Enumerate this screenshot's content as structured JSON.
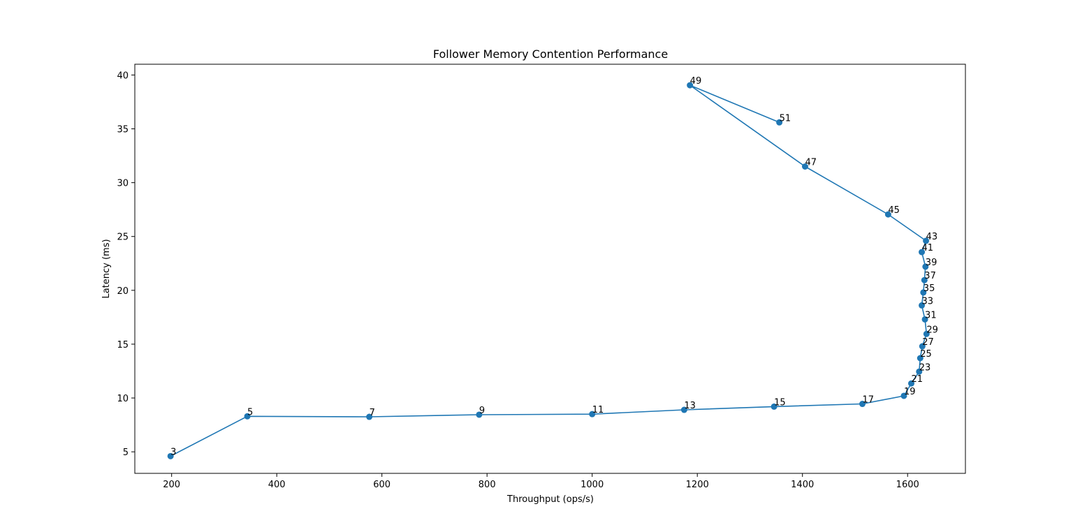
{
  "chart_data": {
    "type": "line",
    "title": "Follower Memory Contention Performance",
    "xlabel": "Throughput (ops/s)",
    "ylabel": "Latency (ms)",
    "xlim": [
      130,
      1710
    ],
    "ylim": [
      3,
      41
    ],
    "xticks": [
      200,
      400,
      600,
      800,
      1000,
      1200,
      1400,
      1600
    ],
    "yticks": [
      5,
      10,
      15,
      20,
      25,
      30,
      35,
      40
    ],
    "grid": false,
    "color": "#1f77b4",
    "points": [
      {
        "label": "3",
        "x": 198,
        "y": 4.6
      },
      {
        "label": "5",
        "x": 344,
        "y": 8.3
      },
      {
        "label": "7",
        "x": 576,
        "y": 8.25
      },
      {
        "label": "9",
        "x": 785,
        "y": 8.45
      },
      {
        "label": "11",
        "x": 1000,
        "y": 8.5
      },
      {
        "label": "13",
        "x": 1175,
        "y": 8.9
      },
      {
        "label": "15",
        "x": 1346,
        "y": 9.2
      },
      {
        "label": "17",
        "x": 1514,
        "y": 9.45
      },
      {
        "label": "19",
        "x": 1593,
        "y": 10.2
      },
      {
        "label": "21",
        "x": 1607,
        "y": 11.35
      },
      {
        "label": "23",
        "x": 1622,
        "y": 12.45
      },
      {
        "label": "25",
        "x": 1624,
        "y": 13.7
      },
      {
        "label": "27",
        "x": 1628,
        "y": 14.8
      },
      {
        "label": "29",
        "x": 1636,
        "y": 15.95
      },
      {
        "label": "31",
        "x": 1633,
        "y": 17.3
      },
      {
        "label": "33",
        "x": 1627,
        "y": 18.6
      },
      {
        "label": "35",
        "x": 1630,
        "y": 19.8
      },
      {
        "label": "37",
        "x": 1632,
        "y": 20.95
      },
      {
        "label": "39",
        "x": 1634,
        "y": 22.2
      },
      {
        "label": "41",
        "x": 1627,
        "y": 23.55
      },
      {
        "label": "43",
        "x": 1635,
        "y": 24.6
      },
      {
        "label": "45",
        "x": 1563,
        "y": 27.05
      },
      {
        "label": "47",
        "x": 1405,
        "y": 31.5
      },
      {
        "label": "49",
        "x": 1186,
        "y": 39.05
      },
      {
        "label": "51",
        "x": 1356,
        "y": 35.6
      }
    ]
  }
}
